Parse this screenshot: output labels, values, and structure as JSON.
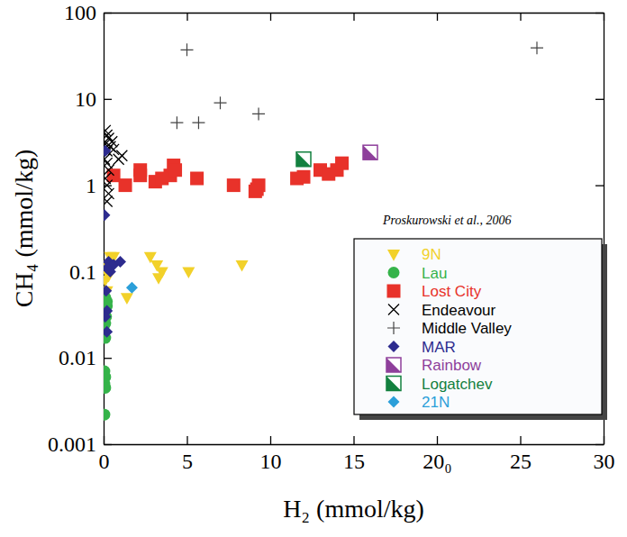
{
  "chart_data": {
    "type": "scatter",
    "log": "y",
    "xlabel": "H₂ (mmol/kg)",
    "ylabel": "CH₄ (mmol/kg)",
    "annotation": "Proskurowski et al., 2006",
    "legend": "lower right",
    "xlim": [
      0,
      30
    ],
    "ylim": [
      0.001,
      100
    ],
    "xticks": [
      0,
      5,
      10,
      15,
      {
        "value": 20,
        "label": "20₀"
      },
      25,
      30
    ],
    "yticks": [
      0.001,
      0.01,
      0.1,
      1,
      10,
      100
    ],
    "series": [
      {
        "name": "9N",
        "color": "#f2d12a",
        "marker": "triangle-down",
        "x": [
          0.4,
          0.6,
          0.2,
          0.3,
          0.1,
          1.4,
          2.8,
          3.2,
          3.5,
          3.3,
          5.1,
          8.3,
          0.2
        ],
        "values": [
          0.15,
          0.15,
          0.12,
          0.09,
          0.08,
          0.05,
          0.15,
          0.12,
          0.1,
          0.085,
          0.1,
          0.12,
          0.06
        ]
      },
      {
        "name": "Lau",
        "color": "#35b34a",
        "marker": "circle",
        "x": [
          0.1,
          0.2,
          0.1,
          0.15,
          0.1,
          0.05,
          0.1,
          0.05,
          0.1,
          0.05,
          0.1,
          0.05,
          0.2,
          0.05
        ],
        "values": [
          0.05,
          0.04,
          0.035,
          0.03,
          0.025,
          0.02,
          0.017,
          0.007,
          0.006,
          0.005,
          0.0045,
          0.0022,
          0.045,
          0.03
        ]
      },
      {
        "name": "Lost City",
        "color": "#e8322a",
        "marker": "square",
        "x": [
          0.6,
          1.3,
          2.2,
          2.2,
          3.1,
          3.5,
          4.0,
          4.2,
          4.3,
          5.6,
          7.8,
          9.2,
          9.3,
          9.1,
          11.6,
          12.0,
          13.0,
          13.5,
          14.0,
          14.3
        ],
        "values": [
          1.3,
          1.0,
          1.5,
          1.3,
          1.1,
          1.2,
          1.3,
          1.7,
          1.5,
          1.2,
          1.0,
          0.9,
          1.0,
          0.85,
          1.2,
          1.25,
          1.5,
          1.35,
          1.5,
          1.8
        ]
      },
      {
        "name": "Endeavour",
        "color": "#000000",
        "marker": "x",
        "x": [
          0.1,
          0.2,
          0.3,
          0.1,
          0.4,
          0.2,
          0.6,
          1.1,
          0.9,
          0.2,
          0.3,
          0.1,
          0.2,
          0.3,
          0.2,
          0.5,
          0.05
        ],
        "values": [
          4.3,
          3.8,
          3.5,
          3.0,
          2.8,
          2.5,
          2.6,
          2.2,
          2.0,
          1.8,
          1.5,
          1.2,
          1.0,
          0.8,
          0.65,
          3.2,
          2.0
        ]
      },
      {
        "name": "Middle Valley",
        "color": "#000000",
        "marker": "plus",
        "x": [
          5.0,
          26.0,
          7.0,
          9.3,
          4.4,
          5.7
        ],
        "values": [
          37,
          39,
          9,
          6.7,
          5.3,
          5.3
        ]
      },
      {
        "name": "MAR",
        "color": "#2d2b8e",
        "marker": "diamond",
        "x": [
          0.1,
          0.05,
          0.3,
          0.6,
          1.0,
          0.4,
          0.2,
          0.2,
          0.1,
          0.2,
          0.15
        ],
        "values": [
          2.5,
          0.45,
          0.13,
          0.12,
          0.13,
          0.1,
          0.11,
          0.035,
          0.03,
          0.02,
          0.06
        ]
      },
      {
        "name": "Rainbow",
        "color": "#8e3f9b",
        "marker": "half-square",
        "x": [
          16.0
        ],
        "values": [
          2.4
        ]
      },
      {
        "name": "Logatchev",
        "color": "#13803f",
        "marker": "half-square",
        "x": [
          12.0
        ],
        "values": [
          2.0
        ]
      },
      {
        "name": "21N",
        "color": "#2b9fd9",
        "marker": "diamond",
        "x": [
          1.7
        ],
        "values": [
          0.065
        ]
      }
    ]
  }
}
